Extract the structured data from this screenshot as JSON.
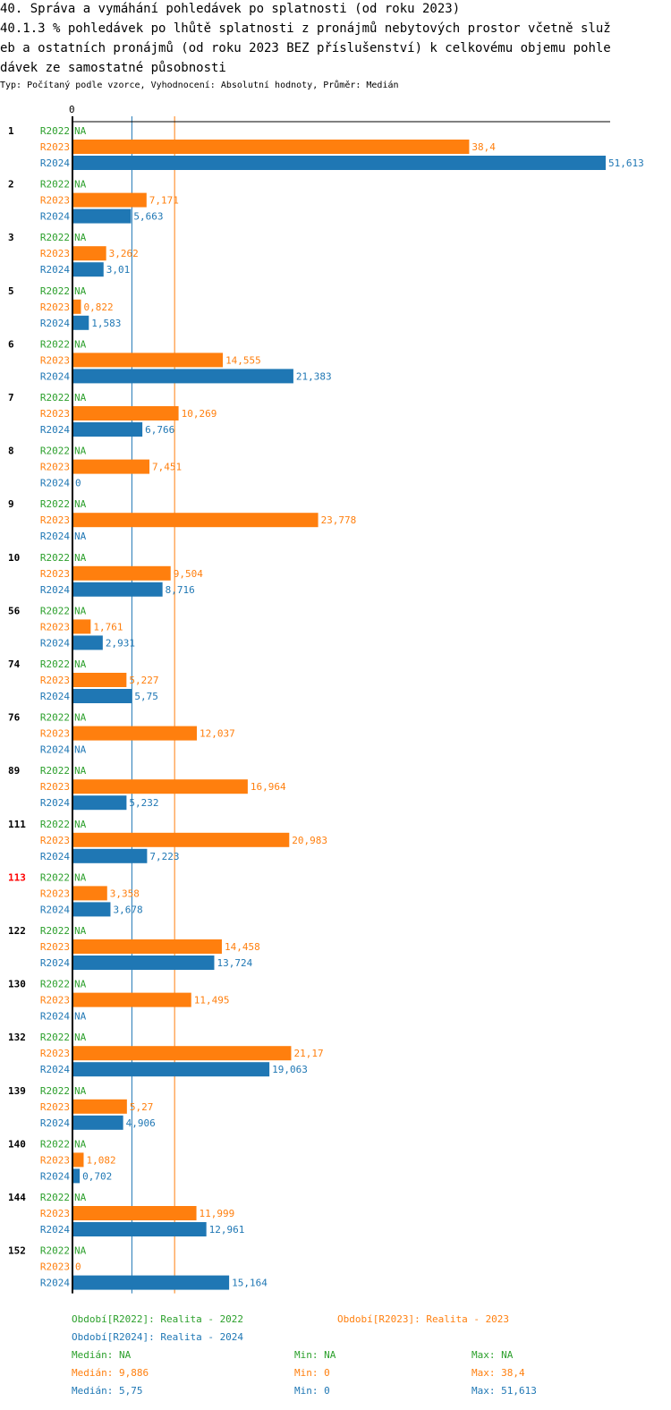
{
  "header": {
    "title": "40. Správa a vymáhání pohledávek po splatnosti (od roku 2023)",
    "subtitle_lines": [
      "40.1.3 % pohledávek po lhůtě splatnosti z pronájmů nebytových prostor včetně služ",
      "eb a ostatních pronájmů (od roku 2023 BEZ příslušenství) k celkovému objemu pohle",
      "dávek ze samostatné působnosti"
    ],
    "meta": "Typ: Počítaný podle vzorce, Vyhodnocení: Absolutní hodnoty, Průměr: Medián"
  },
  "chart_data": {
    "type": "bar",
    "orientation": "horizontal",
    "axis_tick": "0",
    "xlim": [
      0,
      51.613
    ],
    "series_names": [
      "R2022",
      "R2023",
      "R2024"
    ],
    "colors": {
      "R2022": "#2ca02c",
      "R2023": "#ff7f0e",
      "R2024": "#1f77b4",
      "highlight": "#ff0000"
    },
    "reference_lines": [
      {
        "series": "R2024",
        "label": "Medián",
        "value": 5.75
      },
      {
        "series": "R2023",
        "label": "Medián",
        "value": 9.886
      }
    ],
    "groups": [
      {
        "id": "1",
        "values": [
          "NA",
          "38,4",
          "51,613"
        ]
      },
      {
        "id": "2",
        "values": [
          "NA",
          "7,171",
          "5,663"
        ]
      },
      {
        "id": "3",
        "values": [
          "NA",
          "3,262",
          "3,01"
        ]
      },
      {
        "id": "5",
        "values": [
          "NA",
          "0,822",
          "1,583"
        ]
      },
      {
        "id": "6",
        "values": [
          "NA",
          "14,555",
          "21,383"
        ]
      },
      {
        "id": "7",
        "values": [
          "NA",
          "10,269",
          "6,766"
        ]
      },
      {
        "id": "8",
        "values": [
          "NA",
          "7,451",
          "0"
        ]
      },
      {
        "id": "9",
        "values": [
          "NA",
          "23,778",
          "NA"
        ]
      },
      {
        "id": "10",
        "values": [
          "NA",
          "9,504",
          "8,716"
        ]
      },
      {
        "id": "56",
        "values": [
          "NA",
          "1,761",
          "2,931"
        ]
      },
      {
        "id": "74",
        "values": [
          "NA",
          "5,227",
          "5,75"
        ]
      },
      {
        "id": "76",
        "values": [
          "NA",
          "12,037",
          "NA"
        ]
      },
      {
        "id": "89",
        "values": [
          "NA",
          "16,964",
          "5,232"
        ]
      },
      {
        "id": "111",
        "values": [
          "NA",
          "20,983",
          "7,223"
        ]
      },
      {
        "id": "113",
        "values": [
          "NA",
          "3,358",
          "3,678"
        ],
        "highlight": true
      },
      {
        "id": "122",
        "values": [
          "NA",
          "14,458",
          "13,724"
        ]
      },
      {
        "id": "130",
        "values": [
          "NA",
          "11,495",
          "NA"
        ]
      },
      {
        "id": "132",
        "values": [
          "NA",
          "21,17",
          "19,063"
        ]
      },
      {
        "id": "139",
        "values": [
          "NA",
          "5,27",
          "4,906"
        ]
      },
      {
        "id": "140",
        "values": [
          "NA",
          "1,082",
          "0,702"
        ]
      },
      {
        "id": "144",
        "values": [
          "NA",
          "11,999",
          "12,961"
        ]
      },
      {
        "id": "152",
        "values": [
          "NA",
          "0",
          "15,164"
        ]
      }
    ]
  },
  "legend": {
    "r2022": "Období[R2022]: Realita - 2022",
    "r2023": "Období[R2023]: Realita - 2023",
    "r2024": "Období[R2024]: Realita - 2024"
  },
  "stats": {
    "r2022": {
      "median": "Medián: NA",
      "min": "Min: NA",
      "max": "Max: NA"
    },
    "r2023": {
      "median": "Medián: 9,886",
      "min": "Min: 0",
      "max": "Max: 38,4"
    },
    "r2024": {
      "median": "Medián: 5,75",
      "min": "Min: 0",
      "max": "Max: 51,613"
    }
  }
}
